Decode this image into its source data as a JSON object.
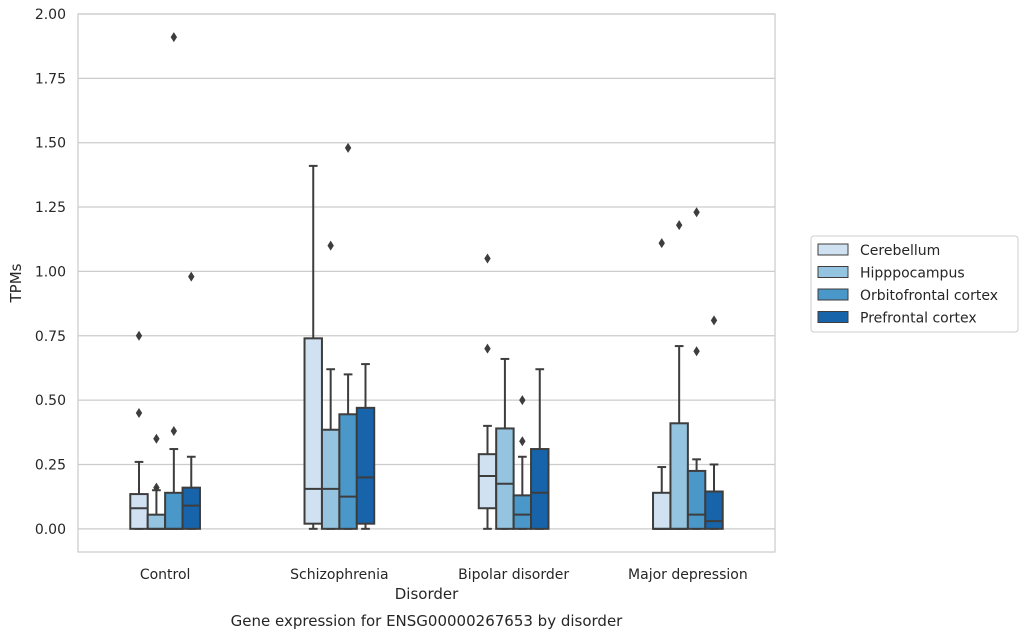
{
  "chart_data": {
    "type": "box",
    "xlabel": "Disorder",
    "ylabel": "TPMs",
    "caption": "Gene expression for ENSG00000267653 by disorder",
    "ylim": [
      -0.09,
      2.0
    ],
    "yticks": [
      "0.00",
      "0.25",
      "0.50",
      "0.75",
      "1.00",
      "1.25",
      "1.50",
      "1.75",
      "2.00"
    ],
    "grid": true,
    "legend_placement": "right",
    "categories": [
      "Control",
      "Schizophrenia",
      "Bipolar disorder",
      "Major depression"
    ],
    "series": [
      {
        "name": "Cerebellum",
        "color": "#d0e1f2",
        "boxes": [
          {
            "whislo": 0.0,
            "q1": 0.0,
            "med": 0.08,
            "q3": 0.135,
            "whishi": 0.26,
            "fliers": [
              0.45,
              0.75
            ]
          },
          {
            "whislo": 0.0,
            "q1": 0.02,
            "med": 0.155,
            "q3": 0.74,
            "whishi": 1.41,
            "fliers": []
          },
          {
            "whislo": 0.0,
            "q1": 0.08,
            "med": 0.205,
            "q3": 0.29,
            "whishi": 0.4,
            "fliers": [
              0.7,
              1.05
            ]
          },
          {
            "whislo": 0.0,
            "q1": 0.0,
            "med": 0.0,
            "q3": 0.14,
            "whishi": 0.24,
            "fliers": [
              1.11
            ]
          }
        ]
      },
      {
        "name": "Hipppocampus",
        "color": "#94c4df",
        "boxes": [
          {
            "whislo": 0.0,
            "q1": 0.0,
            "med": 0.0,
            "q3": 0.055,
            "whishi": 0.15,
            "fliers": [
              0.16,
              0.35
            ]
          },
          {
            "whislo": 0.0,
            "q1": 0.0,
            "med": 0.155,
            "q3": 0.385,
            "whishi": 0.62,
            "fliers": [
              1.1
            ]
          },
          {
            "whislo": 0.0,
            "q1": 0.0,
            "med": 0.175,
            "q3": 0.39,
            "whishi": 0.66,
            "fliers": []
          },
          {
            "whislo": 0.0,
            "q1": 0.0,
            "med": 0.0,
            "q3": 0.41,
            "whishi": 0.71,
            "fliers": [
              1.18
            ]
          }
        ]
      },
      {
        "name": "Orbitofrontal cortex",
        "color": "#4a98c9",
        "boxes": [
          {
            "whislo": 0.0,
            "q1": 0.0,
            "med": 0.0,
            "q3": 0.14,
            "whishi": 0.31,
            "fliers": [
              0.38,
              1.91
            ]
          },
          {
            "whislo": 0.0,
            "q1": 0.0,
            "med": 0.125,
            "q3": 0.445,
            "whishi": 0.6,
            "fliers": [
              1.48
            ]
          },
          {
            "whislo": 0.0,
            "q1": 0.0,
            "med": 0.055,
            "q3": 0.13,
            "whishi": 0.28,
            "fliers": [
              0.34,
              0.5
            ]
          },
          {
            "whislo": 0.0,
            "q1": 0.0,
            "med": 0.055,
            "q3": 0.225,
            "whishi": 0.27,
            "fliers": [
              0.69,
              1.23
            ]
          }
        ]
      },
      {
        "name": "Prefrontal cortex",
        "color": "#1764ab",
        "boxes": [
          {
            "whislo": 0.0,
            "q1": 0.0,
            "med": 0.09,
            "q3": 0.16,
            "whishi": 0.28,
            "fliers": [
              0.98
            ]
          },
          {
            "whislo": 0.0,
            "q1": 0.02,
            "med": 0.2,
            "q3": 0.47,
            "whishi": 0.64,
            "fliers": []
          },
          {
            "whislo": 0.0,
            "q1": 0.0,
            "med": 0.14,
            "q3": 0.31,
            "whishi": 0.62,
            "fliers": []
          },
          {
            "whislo": 0.0,
            "q1": 0.0,
            "med": 0.03,
            "q3": 0.145,
            "whishi": 0.25,
            "fliers": [
              0.81
            ]
          }
        ]
      }
    ]
  }
}
